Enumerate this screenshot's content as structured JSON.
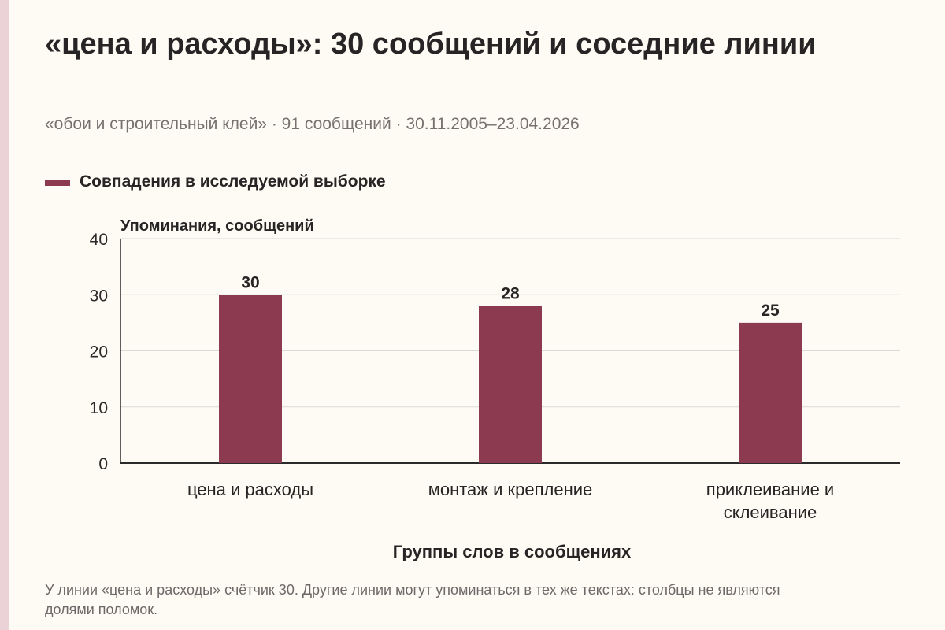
{
  "header": {
    "title": "«цена и расходы»: 30 сообщений и соседние линии",
    "subtitle": "«обои и строительный клей» · 91 сообщений · 30.11.2005–23.04.2026"
  },
  "legend": {
    "label": "Совпадения в исследуемой выборке"
  },
  "chart_data": {
    "type": "bar",
    "categories": [
      "цена и расходы",
      "монтаж и крепление",
      "приклеивание и склеивание"
    ],
    "category_lines": [
      [
        "цена и расходы"
      ],
      [
        "монтаж и крепление"
      ],
      [
        "приклеивание и",
        "склеивание"
      ]
    ],
    "series": [
      {
        "name": "Совпадения в исследуемой выборке",
        "values": [
          30,
          28,
          25
        ]
      }
    ],
    "value_labels": [
      "30",
      "28",
      "25"
    ],
    "ylabel": "Упоминания, сообщений",
    "xlabel": "Группы слов в сообщениях",
    "ylim": [
      0,
      40
    ],
    "yticks": [
      0,
      10,
      20,
      30,
      40
    ],
    "grid": true,
    "legend_position": "top-left",
    "colors": {
      "bar": "#8b3a50",
      "grid": "#dcdad4",
      "axis": "#2a2a2a"
    }
  },
  "footnote": "У линии «цена и расходы» счётчик 30. Другие линии могут упоминаться в тех же текстах: столбцы не являются долями поломок."
}
